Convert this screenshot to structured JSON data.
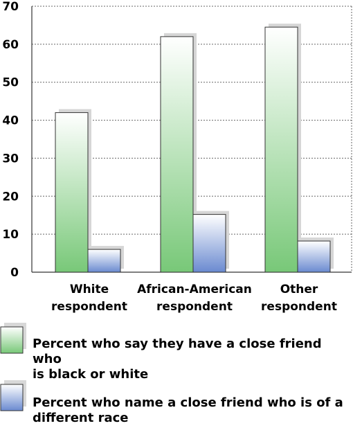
{
  "chart_data": {
    "type": "bar",
    "categories": [
      "White respondent",
      "African-American respondent",
      "Other respondent"
    ],
    "category_lines": [
      [
        "White",
        "respondent"
      ],
      [
        "African-American",
        "respondent"
      ],
      [
        "Other",
        "respondent"
      ]
    ],
    "series": [
      {
        "name": "Percent who say they have a close friend who is black or white",
        "values": [
          42,
          62,
          64.5
        ]
      },
      {
        "name": "Percent who name a close friend who is of a different race",
        "values": [
          6,
          15.2,
          8.2
        ]
      }
    ],
    "ylim": [
      0,
      70
    ],
    "yticks": [
      "0",
      "10",
      "20",
      "30",
      "40",
      "50",
      "60",
      "70"
    ],
    "grid": true,
    "legend_placement": "bottom"
  },
  "legend": {
    "items": [
      {
        "lines": [
          "Percent who say they have a close friend who",
          "is black or white"
        ],
        "color": "#7ec87e"
      },
      {
        "lines": [
          "Percent who name a close friend who is of a",
          "different race"
        ],
        "color": "#6f8fd4"
      }
    ]
  },
  "colors": {
    "green_bottom": "#78c878",
    "blue_bottom": "#6a8ad0",
    "shadow": "#d8d8d8",
    "grid": "#555555"
  }
}
